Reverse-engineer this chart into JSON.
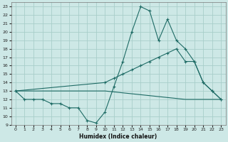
{
  "xlabel": "Humidex (Indice chaleur)",
  "xlim": [
    -0.5,
    23.5
  ],
  "ylim": [
    9,
    23.5
  ],
  "yticks": [
    9,
    10,
    11,
    12,
    13,
    14,
    15,
    16,
    17,
    18,
    19,
    20,
    21,
    22,
    23
  ],
  "xticks": [
    0,
    1,
    2,
    3,
    4,
    5,
    6,
    7,
    8,
    9,
    10,
    11,
    12,
    13,
    14,
    15,
    16,
    17,
    18,
    19,
    20,
    21,
    22,
    23
  ],
  "bg_color": "#cde8e6",
  "grid_color": "#a8ceca",
  "line_color": "#1e6b65",
  "line1_x": [
    0,
    1,
    2,
    3,
    4,
    5,
    6,
    7,
    8,
    9,
    10,
    11,
    12,
    13,
    14,
    15,
    16,
    17,
    18,
    19,
    20,
    21,
    22,
    23
  ],
  "line1_y": [
    13,
    12,
    12,
    12,
    11.5,
    11.5,
    11,
    11,
    9.5,
    9.2,
    10.5,
    13.5,
    16.5,
    20,
    23,
    22.5,
    19,
    21.5,
    19,
    18,
    16.5,
    14,
    13,
    12
  ],
  "line2_x": [
    0,
    10,
    11,
    12,
    13,
    14,
    15,
    16,
    17,
    18,
    19,
    20,
    21,
    22,
    23
  ],
  "line2_y": [
    13,
    14,
    14.5,
    15,
    15.5,
    16,
    16.5,
    17,
    17.5,
    18,
    16.5,
    16.5,
    14,
    13,
    12
  ],
  "line3_x": [
    0,
    10,
    19,
    23
  ],
  "line3_y": [
    13,
    13,
    12,
    12
  ]
}
